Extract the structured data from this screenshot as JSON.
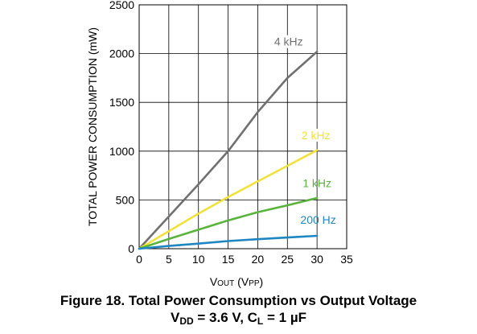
{
  "chart_data": {
    "type": "line",
    "xlabel_main": "V",
    "xlabel_sub": "OUT",
    "xlabel_unit": " (V",
    "xlabel_unit_sub": "PP",
    "xlabel_close": ")",
    "ylabel": "TOTAL POWER CONSUMPTION (mW)",
    "xlim": [
      0,
      35
    ],
    "ylim": [
      0,
      2500
    ],
    "xticks": [
      0,
      5,
      10,
      15,
      20,
      25,
      30,
      35
    ],
    "yticks": [
      0,
      500,
      1000,
      1500,
      2000,
      2500
    ],
    "grid": true,
    "series": [
      {
        "name": "4 kHz",
        "color": "#707070",
        "x": [
          0,
          5,
          10,
          15,
          20,
          25,
          30
        ],
        "values": [
          0,
          330,
          660,
          1000,
          1400,
          1750,
          2020
        ]
      },
      {
        "name": "2 kHz",
        "color": "#f2e13a",
        "x": [
          0,
          5,
          10,
          15,
          20,
          25,
          30
        ],
        "values": [
          0,
          180,
          360,
          530,
          690,
          850,
          1010
        ]
      },
      {
        "name": "1 kHz",
        "color": "#5ab43c",
        "x": [
          0,
          5,
          10,
          15,
          20,
          25,
          30
        ],
        "values": [
          0,
          100,
          195,
          290,
          375,
          445,
          520
        ]
      },
      {
        "name": "200 Hz",
        "color": "#1f86c1",
        "x": [
          0,
          5,
          10,
          15,
          20,
          25,
          30
        ],
        "values": [
          0,
          28,
          52,
          78,
          97,
          115,
          132
        ]
      }
    ]
  },
  "caption": {
    "line1": "Figure 18. Total Power Consumption vs Output Voltage",
    "vdd_v": "V",
    "vdd_sub": "DD",
    "vdd_rest": " = 3.6 V, C",
    "cl_sub": "L",
    "cl_rest": " = 1 µF"
  }
}
